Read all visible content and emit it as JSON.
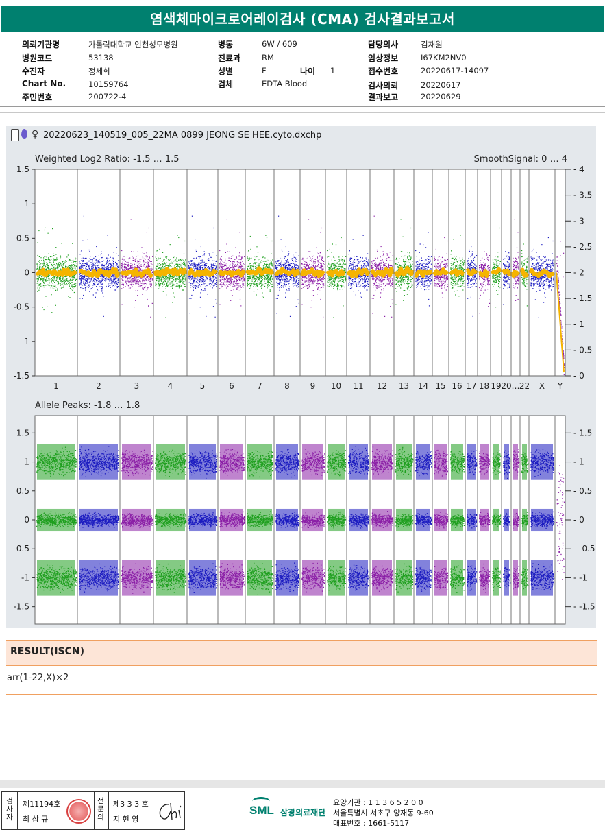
{
  "title": "염색체마이크로어레이검사 (CMA) 검사결과보고서",
  "info": {
    "col1": [
      {
        "label": "의뢰기관명",
        "value": "가톨릭대학교 인천성모병원"
      },
      {
        "label": "병원코드",
        "value": "53138"
      },
      {
        "label": "수진자",
        "value": "정세희"
      },
      {
        "label": "Chart No.",
        "value": "10159764"
      },
      {
        "label": "주민번호",
        "value": "200722-4"
      }
    ],
    "col2": [
      {
        "label": "병동",
        "value": "6W / 609"
      },
      {
        "label": "진료과",
        "value": "RM"
      },
      {
        "label": "성별",
        "value": "F"
      },
      {
        "label": "검체",
        "value": "EDTA Blood"
      }
    ],
    "age": {
      "label": "나이",
      "value": "1"
    },
    "col3": [
      {
        "label": "담당의사",
        "value": "김재원"
      },
      {
        "label": "임상정보",
        "value": "I67KM2NV0"
      },
      {
        "label": "접수번호",
        "value": "20220617-14097"
      },
      {
        "label": "검사의뢰",
        "value": "20220617"
      },
      {
        "label": "결과보고",
        "value": "20220629"
      }
    ]
  },
  "file_name": "20220623_140519_005_22MA 0899 JEONG SE HEE.cyto.dxchp",
  "chart_data": [
    {
      "type": "scatter",
      "title": "Weighted Log2 Ratio: -1.5 … 1.5",
      "right_title": "SmoothSignal: 0 … 4",
      "ylim": [
        -1.5,
        1.5
      ],
      "y_ticks": [
        "1.5",
        "1",
        "0.5",
        "0",
        "-0.5",
        "-1",
        "-1.5"
      ],
      "y2lim": [
        0,
        4
      ],
      "y2_ticks": [
        "4",
        "3.5",
        "3",
        "2.5",
        "2",
        "1.5",
        "1",
        "0.5",
        "0"
      ],
      "categories": [
        "1",
        "2",
        "3",
        "4",
        "5",
        "6",
        "7",
        "8",
        "9",
        "10",
        "11",
        "12",
        "13",
        "14",
        "15",
        "16",
        "17",
        "18",
        "19",
        "20",
        "21",
        "22",
        "X",
        "Y"
      ],
      "x_labels": [
        "1",
        "2",
        "3",
        "4",
        "5",
        "6",
        "7",
        "8",
        "9",
        "10",
        "11",
        "12",
        "13",
        "14",
        "15",
        "16",
        "17",
        "18",
        "19",
        "20",
        "…",
        "22",
        "X",
        "Y"
      ],
      "series_colors": [
        "#1f9f1f",
        "#1c1cc0",
        "#8b1fa6"
      ],
      "smooth_color": "#f5b400"
    },
    {
      "type": "scatter",
      "title": "Allele Peaks: -1.8 … 1.8",
      "ylim": [
        -1.8,
        1.8
      ],
      "y_ticks": [
        "1.5",
        "1",
        "0.5",
        "0",
        "-0.5",
        "-1",
        "-1.5"
      ],
      "y2_ticks": [
        "1.5",
        "1",
        "0.5",
        "0",
        "-0.5",
        "-1",
        "-1.5"
      ],
      "bands": [
        1,
        0,
        -1
      ]
    }
  ],
  "result": {
    "heading": "RESULT(ISCN)",
    "text": "arr(1-22,X)×2"
  },
  "footer": {
    "sign": {
      "label1": "검사자",
      "no1": "제11194호",
      "name1": "최 삼 규",
      "label2": "전문의",
      "no2": "제3 3 3 호",
      "name2": "지 현 영"
    },
    "org": {
      "logo": "SML",
      "name": "삼광의료재단",
      "line1": "요양기관 : 1 1 3 6 5 2 0 0",
      "line2": "서울특별시 서초구 양재동 9-60",
      "line3": "대표번호 : 1661-5117"
    }
  }
}
